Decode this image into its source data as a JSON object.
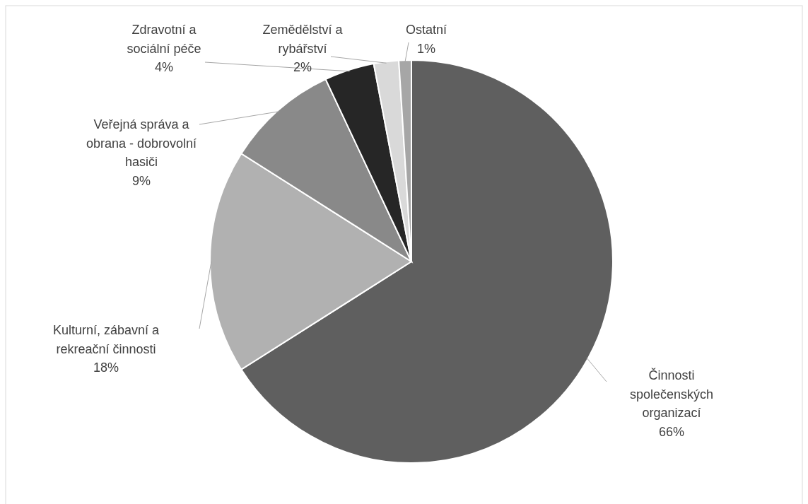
{
  "chart_data": {
    "type": "pie",
    "categories": [
      "Činnosti společenských organizací",
      "Kulturní, zábavní a rekreační činnosti",
      "Veřejná správa a obrana - dobrovolní hasiči",
      "Zdravotní a sociální péče",
      "Zemědělství a rybářství",
      "Ostatní"
    ],
    "values": [
      66,
      18,
      9,
      4,
      2,
      1
    ],
    "value_labels": [
      "66%",
      "18%",
      "9%",
      "4%",
      "2%",
      "1%"
    ],
    "colors": [
      "#5f5f5f",
      "#b1b1b1",
      "#898989",
      "#262626",
      "#d9d9d9",
      "#a6a6a6"
    ]
  }
}
